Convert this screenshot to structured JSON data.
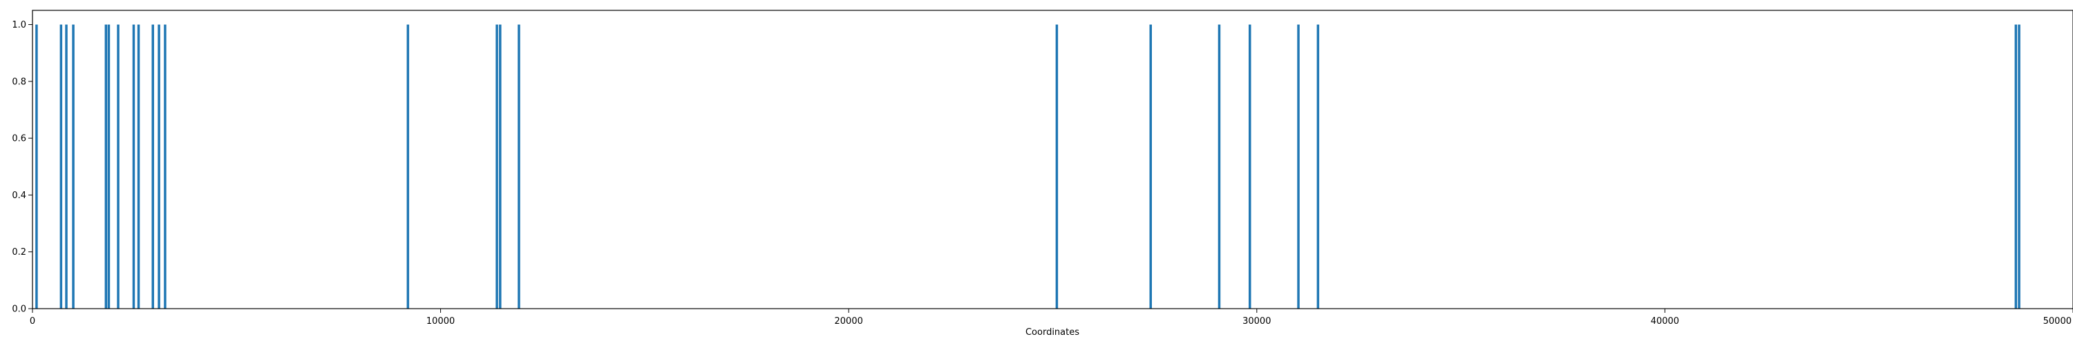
{
  "chart_data": {
    "type": "bar",
    "title": "",
    "xlabel": "Coordinates",
    "ylabel": "",
    "xlim": [
      0,
      50000
    ],
    "ylim": [
      0,
      1.05
    ],
    "grid": false,
    "legend": "none",
    "bar_color": "#1f77b4",
    "xticks": [
      0,
      10000,
      20000,
      30000,
      40000,
      50000
    ],
    "xtick_labels": [
      "0",
      "10000",
      "20000",
      "30000",
      "40000",
      "50000"
    ],
    "yticks": [
      0.0,
      0.2,
      0.4,
      0.6,
      0.8,
      1.0
    ],
    "ytick_labels": [
      "0.0",
      "0.2",
      "0.4",
      "0.6",
      "0.8",
      "1.0"
    ],
    "x": [
      100,
      700,
      830,
      1000,
      1800,
      1870,
      2100,
      2480,
      2600,
      2950,
      3100,
      3250,
      9200,
      11380,
      11460,
      11920,
      25100,
      27400,
      29080,
      29830,
      31020,
      31500,
      48600,
      48680
    ],
    "values": [
      1,
      1,
      1,
      1,
      1,
      1,
      1,
      1,
      1,
      1,
      1,
      1,
      1,
      1,
      1,
      1,
      1,
      1,
      1,
      1,
      1,
      1,
      1,
      1
    ]
  }
}
